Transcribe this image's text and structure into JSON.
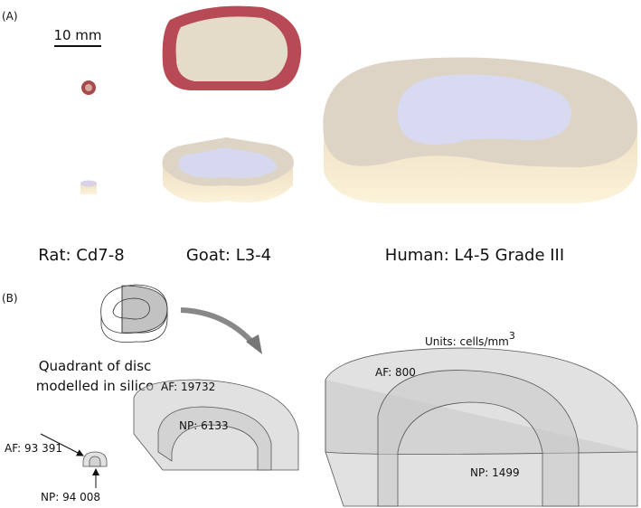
{
  "panel_a": {
    "label": "(A)",
    "scale_bar": "10 mm",
    "species": [
      "Rat: Cd7-8",
      "Goat: L3-4",
      "Human: L4-5 Grade III"
    ]
  },
  "panel_b": {
    "label": "(B)",
    "caption": [
      "Quadrant of disc",
      "modelled in silico"
    ],
    "units": {
      "text": "Units: cells/mm",
      "superscript": "3"
    },
    "rat": {
      "af": "AF: 93 391",
      "np": "NP: 94 008"
    },
    "goat": {
      "af": "AF: 19732",
      "np": "NP: 6133"
    },
    "human": {
      "af": "AF: 800",
      "np": "NP: 1499"
    }
  }
}
